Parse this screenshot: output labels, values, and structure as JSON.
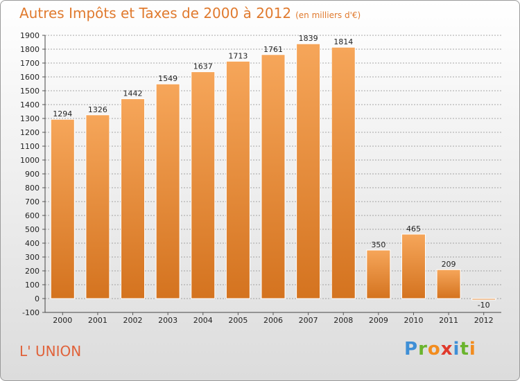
{
  "header": {
    "title": "Autres Impôts et Taxes de 2000 à 2012",
    "subtitle": "(en milliers d'€)"
  },
  "commune": "L' UNION",
  "logo": {
    "text": "Proxiti",
    "letters": [
      {
        "ch": "P",
        "color": "#3f8fd6"
      },
      {
        "ch": "r",
        "color": "#6ab42d"
      },
      {
        "ch": "o",
        "color": "#f28c1e"
      },
      {
        "ch": "x",
        "color": "#e0392b"
      },
      {
        "ch": "i",
        "color": "#3f8fd6"
      },
      {
        "ch": "t",
        "color": "#6ab42d"
      },
      {
        "ch": "i",
        "color": "#f28c1e"
      }
    ]
  },
  "colors": {
    "bar_light": "#f6a65a",
    "bar_dark": "#d4731f",
    "grid": "#8a8a8a",
    "title": "#e07a2e"
  },
  "chart_data": {
    "type": "bar",
    "categories": [
      "2000",
      "2001",
      "2002",
      "2003",
      "2004",
      "2005",
      "2006",
      "2007",
      "2008",
      "2009",
      "2010",
      "2011",
      "2012"
    ],
    "values": [
      1294,
      1326,
      1442,
      1549,
      1637,
      1713,
      1761,
      1839,
      1814,
      350,
      465,
      209,
      -10
    ],
    "data_labels": [
      "1294",
      "1326",
      "1442",
      "1549",
      "1637",
      "1713",
      "1761",
      "1839",
      "1814",
      "350",
      "465",
      "209",
      "-10"
    ],
    "title": "Autres Impôts et Taxes de 2000 à 2012",
    "subtitle": "(en milliers d'€)",
    "ylim": [
      -100,
      1900
    ],
    "yticks": [
      -100,
      0,
      100,
      200,
      300,
      400,
      500,
      600,
      700,
      800,
      900,
      1000,
      1100,
      1200,
      1300,
      1400,
      1500,
      1600,
      1700,
      1800,
      1900
    ],
    "grid": true
  }
}
